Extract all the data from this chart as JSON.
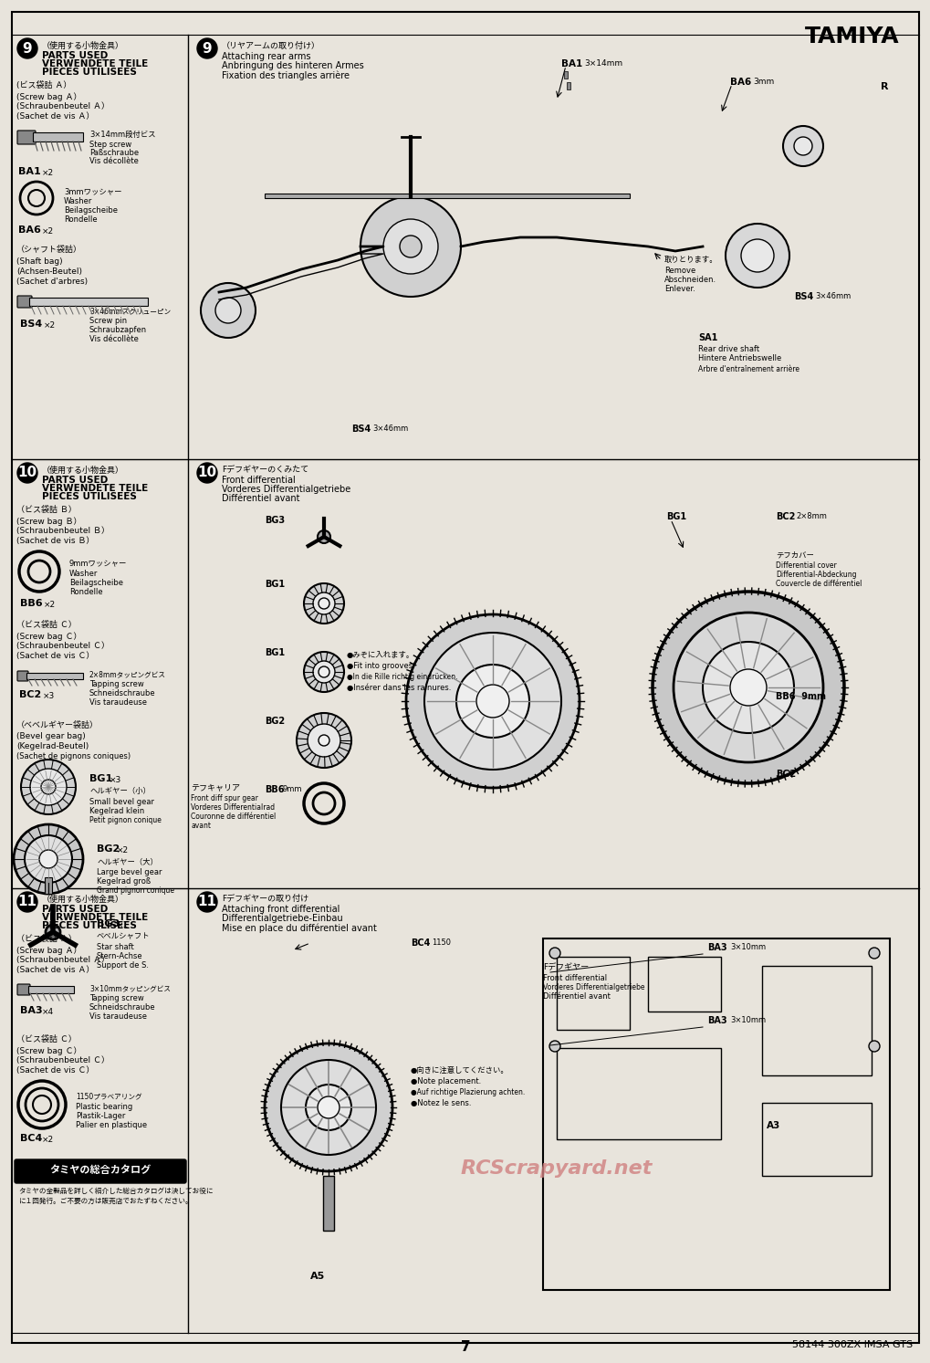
{
  "title": "TAMIYA",
  "page_number": "7",
  "footer_text": "58144 300ZX IMSA GTS",
  "bg_color": "#e8e4dc",
  "border_color": "#000000",
  "watermark_text": "RCScrapyard.net",
  "watermark_color": "#d08080",
  "sec9_left_header_jp": "（使用する小物金具）",
  "sec9_left_header_en": "PARTS USED\nVERWENDETE TEILE\nPIECES UTILISEES",
  "sec9_right_title_jp": "（リヤアームの取り付け）",
  "sec9_right_title_en": "Attaching rear arms\nAnbringung des hinteren Armes\nFixation des triangles arrière",
  "sec10_left_header_jp": "（使用する小物金具）",
  "sec10_left_header_en": "PARTS USED\nVERWENDETE TEILE\nPIECES UTILISEES",
  "sec10_right_title_jp": "Fデフギヤーのくみたて",
  "sec10_right_title_en": "Front differential\nVorderes Differentialgetriebe\nDifférentiel avant",
  "sec11_left_header_jp": "（使用する小物金具）",
  "sec11_left_header_en": "PARTS USED\nVERWENDETE TEILE\nPIECES UTILISEES",
  "sec11_right_title_jp": "Fデフギヤーの取り付け",
  "sec11_right_title_en": "Attaching front differential\nDifferentialgetriebe-Einbau\nMise en place du différentiel avant",
  "catalog_title": "タミヤの総合カタログ",
  "catalog_text1": "タミヤの全製品を詳しく紹介した総合カタログは決してお役に",
  "catalog_text2": "に１回発行。ご不要の方は販売店でおたずねください。"
}
